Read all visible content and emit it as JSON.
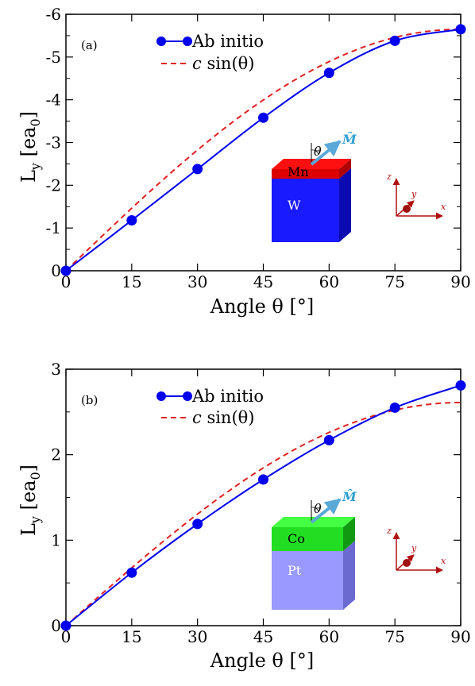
{
  "chart_data": [
    {
      "type": "line",
      "panel_label": "(a)",
      "xlabel": "Angle θ [°]",
      "ylabel_main": "L",
      "ylabel_sub": "y",
      "ylabel_unit_open": " [ea",
      "ylabel_unit_sub": "0",
      "ylabel_unit_close": "]",
      "xlim": [
        0,
        90
      ],
      "ylim": [
        0,
        -6
      ],
      "xticks": [
        0,
        15,
        30,
        45,
        60,
        75,
        90
      ],
      "xtick_labels": [
        "0",
        "15",
        "30",
        "45",
        "60",
        "75",
        "90"
      ],
      "yticks": [
        0,
        -1,
        -2,
        -3,
        -4,
        -5,
        -6
      ],
      "ytick_labels": [
        "0",
        "-1",
        "-2",
        "-3",
        "-4",
        "-5",
        "-6"
      ],
      "series": [
        {
          "name": "Ab initio",
          "style": "line-marker",
          "color": "#0000ee",
          "x": [
            0,
            15,
            30,
            45,
            60,
            75,
            90
          ],
          "y": [
            0,
            -1.18,
            -2.38,
            -3.58,
            -4.63,
            -5.38,
            -5.65
          ]
        },
        {
          "name": "c sin(θ)",
          "style": "dashed",
          "color": "#e02020",
          "amplitude": -5.65
        }
      ],
      "legend": {
        "placement": "top-left",
        "entry1": "Ab initio",
        "entry2_italic": "c",
        "entry2_rest": " sin(θ)"
      },
      "inset": {
        "top_layer": "Mn",
        "bottom_layer": "W",
        "top_color": "#ff0000",
        "bottom_color": "#1a1aff",
        "angle_symbol": "θ",
        "moment_label": "M̂",
        "axes": [
          "z",
          "y",
          "x"
        ]
      }
    },
    {
      "type": "line",
      "panel_label": "(b)",
      "xlabel": "Angle θ [°]",
      "ylabel_main": "L",
      "ylabel_sub": "y",
      "ylabel_unit_open": " [ea",
      "ylabel_unit_sub": "0",
      "ylabel_unit_close": "]",
      "xlim": [
        0,
        90
      ],
      "ylim": [
        0,
        3
      ],
      "xticks": [
        0,
        15,
        30,
        45,
        60,
        75,
        90
      ],
      "xtick_labels": [
        "0",
        "15",
        "30",
        "45",
        "60",
        "75",
        "90"
      ],
      "yticks": [
        0,
        1,
        2,
        3
      ],
      "ytick_labels": [
        "0",
        "1",
        "2",
        "3"
      ],
      "series": [
        {
          "name": "Ab initio",
          "style": "line-marker",
          "color": "#0000ee",
          "x": [
            0,
            15,
            30,
            45,
            60,
            75,
            90
          ],
          "y": [
            0,
            0.62,
            1.19,
            1.71,
            2.17,
            2.55,
            2.81
          ]
        },
        {
          "name": "c sin(θ)",
          "style": "dashed",
          "color": "#e02020",
          "amplitude": 2.61
        }
      ],
      "legend": {
        "placement": "top-left",
        "entry1": "Ab initio",
        "entry2_italic": "c",
        "entry2_rest": " sin(θ)"
      },
      "inset": {
        "top_layer": "Co",
        "bottom_layer": "Pt",
        "top_color": "#22dd22",
        "bottom_color": "#9999ff",
        "angle_symbol": "θ",
        "moment_label": "M̂",
        "axes": [
          "z",
          "y",
          "x"
        ]
      }
    }
  ]
}
